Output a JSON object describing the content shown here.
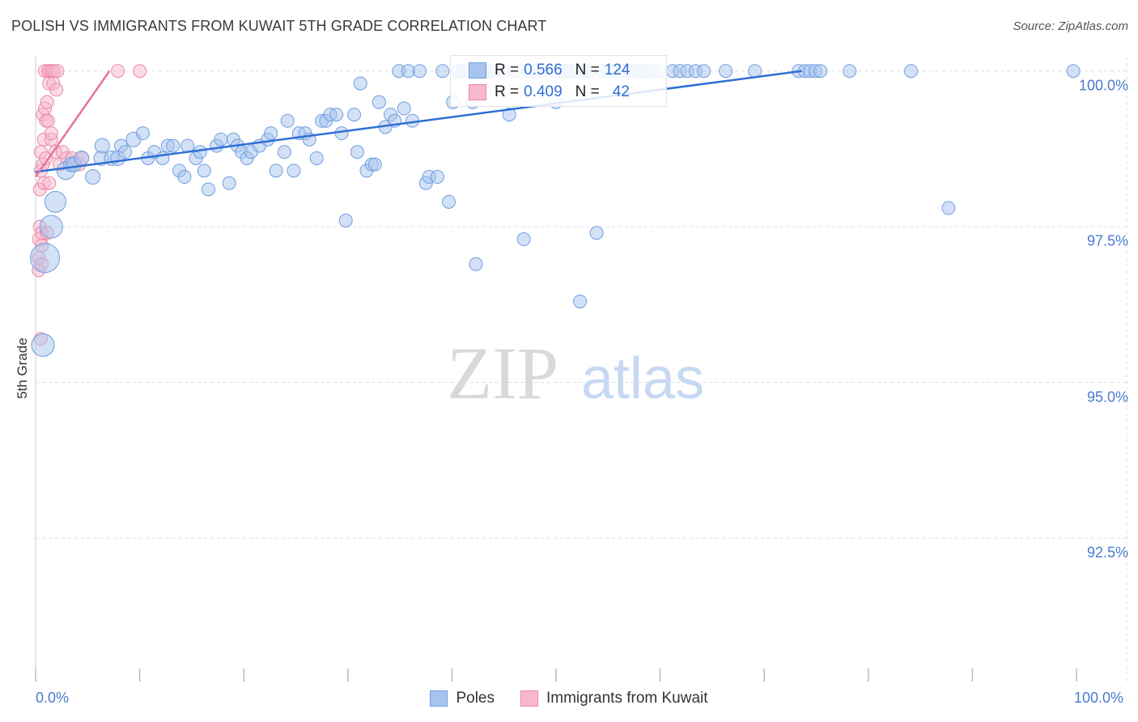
{
  "header": {
    "title": "POLISH VS IMMIGRANTS FROM KUWAIT 5TH GRADE CORRELATION CHART",
    "source": "Source: ZipAtlas.com"
  },
  "watermark": {
    "zip": "ZIP",
    "atlas": "atlas"
  },
  "legend_top": {
    "rows": [
      {
        "r_label": "R =",
        "r_value": "0.566",
        "n_label": "N =",
        "n_value": "124"
      },
      {
        "r_label": "R =",
        "r_value": "0.409",
        "n_label": "N =",
        "n_value": "42"
      }
    ]
  },
  "legend_bottom": {
    "poles": "Poles",
    "kuwait": "Immigrants from Kuwait"
  },
  "colors": {
    "poles_fill": "#a7c4ee",
    "poles_stroke": "#6f9ee0",
    "poles_line": "#2f6fd6",
    "kuwait_fill": "#f7b8cb",
    "kuwait_stroke": "#ea8aa8",
    "kuwait_line": "#e8729a",
    "tick_text": "#4a7bd0",
    "grid": "#dddddd"
  },
  "chart_data": {
    "type": "scatter",
    "title": "POLISH VS IMMIGRANTS FROM KUWAIT 5TH GRADE CORRELATION CHART",
    "xlabel": "",
    "ylabel": "5th Grade",
    "xlim": [
      0,
      100
    ],
    "ylim": [
      90.2,
      100.23
    ],
    "x_tick_labels": [
      "0.0%",
      "100.0%"
    ],
    "y_ticks": [
      {
        "value": 100,
        "label": "100.0%"
      },
      {
        "value": 97.5,
        "label": "97.5%"
      },
      {
        "value": 95,
        "label": "95.0%"
      },
      {
        "value": 92.5,
        "label": "92.5%"
      }
    ],
    "x_minor_ticks": [
      0,
      10,
      20,
      30,
      40,
      50,
      60,
      70,
      80,
      90,
      100
    ],
    "series": [
      {
        "name": "Poles",
        "R": 0.566,
        "N": 124,
        "trend": {
          "x": [
            0,
            73.6
          ],
          "y": [
            98.38,
            100.0
          ]
        },
        "points": [
          [
            0.7,
            95.6,
            14
          ],
          [
            0.9,
            97.0,
            18
          ],
          [
            1.5,
            97.5,
            14
          ],
          [
            1.9,
            97.9,
            13
          ],
          [
            2.9,
            98.4,
            11
          ],
          [
            3.4,
            98.5,
            9
          ],
          [
            3.7,
            98.5,
            9
          ],
          [
            4.4,
            98.6,
            9
          ],
          [
            5.5,
            98.3,
            9
          ],
          [
            6.3,
            98.6,
            9
          ],
          [
            6.4,
            98.8,
            9
          ],
          [
            7.3,
            98.6,
            9
          ],
          [
            7.9,
            98.6,
            9
          ],
          [
            8.2,
            98.8,
            8
          ],
          [
            8.6,
            98.7,
            8
          ],
          [
            9.4,
            98.9,
            9
          ],
          [
            10.3,
            99.0,
            8
          ],
          [
            10.8,
            98.6,
            8
          ],
          [
            11.4,
            98.7,
            8
          ],
          [
            12.2,
            98.6,
            8
          ],
          [
            12.7,
            98.8,
            8
          ],
          [
            13.2,
            98.8,
            8
          ],
          [
            13.8,
            98.4,
            8
          ],
          [
            14.3,
            98.3,
            8
          ],
          [
            14.6,
            98.8,
            8
          ],
          [
            15.4,
            98.6,
            8
          ],
          [
            15.8,
            98.7,
            8
          ],
          [
            16.2,
            98.4,
            8
          ],
          [
            16.6,
            98.1,
            8
          ],
          [
            17.4,
            98.8,
            8
          ],
          [
            17.8,
            98.9,
            8
          ],
          [
            18.6,
            98.2,
            8
          ],
          [
            19.0,
            98.9,
            8
          ],
          [
            19.4,
            98.8,
            8
          ],
          [
            19.8,
            98.7,
            8
          ],
          [
            20.3,
            98.6,
            8
          ],
          [
            20.7,
            98.7,
            8
          ],
          [
            21.5,
            98.8,
            8
          ],
          [
            22.3,
            98.9,
            8
          ],
          [
            22.6,
            99.0,
            8
          ],
          [
            23.1,
            98.4,
            8
          ],
          [
            23.9,
            98.7,
            8
          ],
          [
            24.2,
            99.2,
            8
          ],
          [
            24.8,
            98.4,
            8
          ],
          [
            25.3,
            99.0,
            8
          ],
          [
            25.9,
            99.0,
            8
          ],
          [
            26.3,
            98.9,
            8
          ],
          [
            27.0,
            98.6,
            8
          ],
          [
            27.5,
            99.2,
            8
          ],
          [
            27.9,
            99.2,
            8
          ],
          [
            28.3,
            99.3,
            8
          ],
          [
            28.9,
            99.3,
            8
          ],
          [
            29.4,
            99.0,
            8
          ],
          [
            29.8,
            97.6,
            8
          ],
          [
            30.6,
            99.3,
            8
          ],
          [
            30.9,
            98.7,
            8
          ],
          [
            31.2,
            99.8,
            8
          ],
          [
            31.8,
            98.4,
            8
          ],
          [
            32.3,
            98.5,
            8
          ],
          [
            32.6,
            98.5,
            8
          ],
          [
            33.0,
            99.5,
            8
          ],
          [
            33.6,
            99.1,
            8
          ],
          [
            34.1,
            99.3,
            8
          ],
          [
            34.5,
            99.2,
            8
          ],
          [
            34.9,
            100.0,
            8
          ],
          [
            35.4,
            99.4,
            8
          ],
          [
            35.8,
            100.0,
            8
          ],
          [
            36.2,
            99.2,
            8
          ],
          [
            36.9,
            100.0,
            8
          ],
          [
            37.5,
            98.2,
            8
          ],
          [
            37.8,
            98.3,
            8
          ],
          [
            38.6,
            98.3,
            8
          ],
          [
            39.1,
            100.0,
            8
          ],
          [
            39.7,
            97.9,
            8
          ],
          [
            40.1,
            99.5,
            8
          ],
          [
            40.6,
            100.0,
            8
          ],
          [
            41.1,
            100.0,
            8
          ],
          [
            41.5,
            100.0,
            8
          ],
          [
            42.0,
            99.5,
            8
          ],
          [
            42.3,
            96.9,
            8
          ],
          [
            43.1,
            100.0,
            8
          ],
          [
            43.6,
            100.0,
            8
          ],
          [
            44.0,
            100.0,
            8
          ],
          [
            45.0,
            100.0,
            8
          ],
          [
            45.5,
            99.3,
            8
          ],
          [
            46.1,
            100.0,
            8
          ],
          [
            46.9,
            97.3,
            8
          ],
          [
            47.4,
            100.0,
            8
          ],
          [
            48.0,
            100.0,
            8
          ],
          [
            48.6,
            100.0,
            8
          ],
          [
            49.7,
            100.0,
            8
          ],
          [
            50.0,
            99.5,
            8
          ],
          [
            50.5,
            100.0,
            8
          ],
          [
            51.0,
            100.0,
            8
          ],
          [
            51.4,
            100.0,
            8
          ],
          [
            51.9,
            100.0,
            8
          ],
          [
            52.3,
            96.3,
            8
          ],
          [
            52.7,
            100.0,
            8
          ],
          [
            53.2,
            100.0,
            8
          ],
          [
            53.9,
            97.4,
            8
          ],
          [
            54.4,
            100.0,
            8
          ],
          [
            55.0,
            100.0,
            8
          ],
          [
            55.6,
            100.0,
            8
          ],
          [
            56.4,
            100.0,
            8
          ],
          [
            57.1,
            100.0,
            8
          ],
          [
            57.8,
            100.0,
            8
          ],
          [
            58.4,
            100.0,
            8
          ],
          [
            59.1,
            100.0,
            8
          ],
          [
            59.9,
            100.0,
            8
          ],
          [
            61.2,
            100.0,
            8
          ],
          [
            61.9,
            100.0,
            8
          ],
          [
            62.6,
            100.0,
            8
          ],
          [
            63.4,
            100.0,
            8
          ],
          [
            64.2,
            100.0,
            8
          ],
          [
            66.3,
            100.0,
            8
          ],
          [
            69.1,
            100.0,
            8
          ],
          [
            73.3,
            100.0,
            8
          ],
          [
            73.9,
            100.0,
            8
          ],
          [
            74.4,
            100.0,
            8
          ],
          [
            74.9,
            100.0,
            8
          ],
          [
            75.4,
            100.0,
            8
          ],
          [
            78.2,
            100.0,
            8
          ],
          [
            84.1,
            100.0,
            8
          ],
          [
            87.7,
            97.8,
            8
          ],
          [
            99.7,
            100.0,
            8
          ]
        ]
      },
      {
        "name": "Immigrants from Kuwait",
        "R": 0.409,
        "N": 42,
        "trend": {
          "x": [
            0,
            7.1
          ],
          "y": [
            98.3,
            100.0
          ]
        },
        "points": [
          [
            0.3,
            97.0,
            8
          ],
          [
            0.3,
            96.8,
            8
          ],
          [
            0.4,
            97.3,
            9
          ],
          [
            0.4,
            97.5,
            8
          ],
          [
            0.4,
            98.1,
            8
          ],
          [
            0.5,
            98.4,
            8
          ],
          [
            0.5,
            98.7,
            8
          ],
          [
            0.5,
            95.7,
            8
          ],
          [
            0.6,
            97.4,
            8
          ],
          [
            0.6,
            97.2,
            8
          ],
          [
            0.6,
            96.9,
            8
          ],
          [
            0.7,
            98.5,
            8
          ],
          [
            0.7,
            99.3,
            8
          ],
          [
            0.8,
            98.9,
            8
          ],
          [
            0.8,
            98.2,
            8
          ],
          [
            0.9,
            99.4,
            8
          ],
          [
            0.9,
            100.0,
            8
          ],
          [
            1.0,
            99.2,
            8
          ],
          [
            1.0,
            98.6,
            8
          ],
          [
            1.1,
            99.5,
            8
          ],
          [
            1.1,
            97.4,
            8
          ],
          [
            1.2,
            99.2,
            8
          ],
          [
            1.2,
            100.0,
            8
          ],
          [
            1.3,
            99.8,
            8
          ],
          [
            1.3,
            98.2,
            8
          ],
          [
            1.4,
            100.0,
            8
          ],
          [
            1.5,
            98.9,
            8
          ],
          [
            1.5,
            99.0,
            8
          ],
          [
            1.6,
            100.0,
            8
          ],
          [
            1.7,
            99.8,
            8
          ],
          [
            1.8,
            100.0,
            8
          ],
          [
            1.9,
            98.7,
            8
          ],
          [
            2.0,
            99.7,
            8
          ],
          [
            2.1,
            100.0,
            8
          ],
          [
            2.3,
            98.5,
            8
          ],
          [
            2.6,
            98.7,
            8
          ],
          [
            3.0,
            98.6,
            8
          ],
          [
            3.5,
            98.6,
            8
          ],
          [
            4.2,
            98.5,
            8
          ],
          [
            4.5,
            98.6,
            8
          ],
          [
            7.9,
            100.0,
            8
          ],
          [
            10.0,
            100.0,
            8
          ]
        ]
      }
    ]
  }
}
